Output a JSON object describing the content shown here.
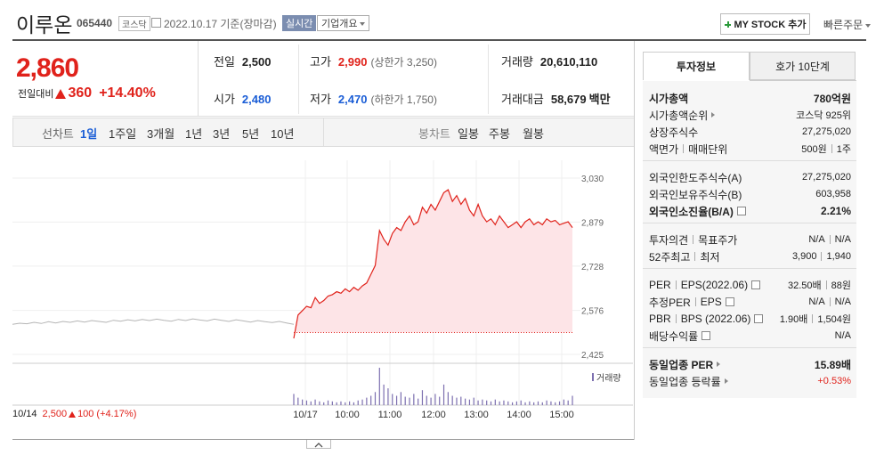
{
  "header": {
    "name": "이루온",
    "code": "065440",
    "market": "코스닥",
    "date": "2022.10.17 기준(장마감)",
    "realtime": "실시간",
    "company_info": "기업개요",
    "my_stock": "MY STOCK 추가",
    "quick_order": "빠른주문"
  },
  "price": {
    "current": "2,860",
    "change_label": "전일대비",
    "change": "360",
    "change_pct": "+14.40%"
  },
  "quote": {
    "rows": [
      [
        {
          "label": "전일",
          "value": "2,500"
        },
        {
          "label": "고가",
          "value": "2,990",
          "color": "#e0221b",
          "note": "(상한가 3,250)"
        },
        {
          "label": "거래량",
          "value": "20,610,110"
        }
      ],
      [
        {
          "label": "시가",
          "value": "2,480",
          "color": "#1a5dd6"
        },
        {
          "label": "저가",
          "value": "2,470",
          "color": "#1a5dd6",
          "note": "(하한가 1,750)"
        },
        {
          "label": "거래대금",
          "value": "58,679",
          "unit": "백만"
        }
      ]
    ]
  },
  "periods": {
    "line_label": "선차트",
    "line": [
      "1일",
      "1주일",
      "3개월",
      "1년",
      "3년",
      "5년",
      "10년"
    ],
    "line_active": 0,
    "candle_label": "봉차트",
    "candle": [
      "일봉",
      "주봉",
      "월봉"
    ]
  },
  "chart": {
    "type": "line",
    "ylim": [
      2425,
      3030
    ],
    "yticks": [
      {
        "value": 3030,
        "label": "3,030"
      },
      {
        "value": 2879,
        "label": "2,879"
      },
      {
        "value": 2728,
        "label": "2,728"
      },
      {
        "value": 2576,
        "label": "2,576"
      },
      {
        "value": 2425,
        "label": "2,425"
      }
    ],
    "xticks": [
      "10/17",
      "10:00",
      "11:00",
      "12:00",
      "13:00",
      "14:00",
      "15:00"
    ],
    "grid": true,
    "reference_line": 2500,
    "previous_day": {
      "color": "#b5b5b5",
      "values": [
        2528,
        2532,
        2530,
        2535,
        2531,
        2537,
        2533,
        2538,
        2535,
        2540,
        2536,
        2541,
        2538,
        2535,
        2542,
        2539,
        2544,
        2540,
        2545,
        2541,
        2546,
        2542,
        2539,
        2545,
        2541,
        2547,
        2543,
        2540,
        2546,
        2542,
        2538,
        2544,
        2540,
        2536,
        2541,
        2537,
        2534,
        2538,
        2533,
        2528
      ]
    },
    "today": {
      "color": "#e0221b",
      "fill": "#fde4e7",
      "values": [
        2480,
        2560,
        2575,
        2590,
        2585,
        2620,
        2600,
        2610,
        2625,
        2630,
        2640,
        2635,
        2650,
        2640,
        2655,
        2645,
        2660,
        2670,
        2700,
        2730,
        2850,
        2820,
        2800,
        2840,
        2860,
        2850,
        2880,
        2900,
        2870,
        2880,
        2930,
        2910,
        2940,
        2920,
        2950,
        2980,
        2990,
        2950,
        2970,
        2940,
        2960,
        2920,
        2900,
        2940,
        2900,
        2880,
        2890,
        2870,
        2900,
        2880,
        2860,
        2870,
        2880,
        2860,
        2880,
        2890,
        2870,
        2880,
        2870,
        2890,
        2880,
        2885,
        2870,
        2875,
        2880,
        2860
      ]
    },
    "volume": {
      "name": "거래량",
      "color": "#7d70b0",
      "values": [
        12,
        8,
        6,
        5,
        4,
        6,
        4,
        3,
        5,
        4,
        3,
        4,
        3,
        4,
        3,
        5,
        6,
        8,
        10,
        14,
        40,
        22,
        18,
        12,
        10,
        14,
        9,
        8,
        12,
        7,
        16,
        10,
        8,
        12,
        9,
        22,
        14,
        10,
        8,
        9,
        7,
        6,
        8,
        5,
        6,
        5,
        4,
        6,
        4,
        5,
        4,
        3,
        4,
        5,
        3,
        4,
        3,
        4,
        3,
        5,
        4,
        3,
        4,
        6,
        5,
        10
      ]
    },
    "summary": {
      "date": "10/14",
      "close": "2,500",
      "change": "100",
      "change_pct": "(+4.17%)"
    }
  },
  "side": {
    "tabs": [
      "투자정보",
      "호가 10단계"
    ],
    "groups": [
      [
        {
          "labels": [
            "시가총액"
          ],
          "values": [
            "780억원"
          ],
          "bold": true
        },
        {
          "labels": [
            "시가총액순위"
          ],
          "values": [
            "코스닥 925위"
          ],
          "link": true
        },
        {
          "labels": [
            "상장주식수"
          ],
          "values": [
            "27,275,020"
          ]
        },
        {
          "labels": [
            "액면가",
            "매매단위"
          ],
          "values": [
            "500원",
            "1주"
          ]
        }
      ],
      [
        {
          "labels": [
            "외국인한도주식수(A)"
          ],
          "values": [
            "27,275,020"
          ]
        },
        {
          "labels": [
            "외국인보유주식수(B)"
          ],
          "values": [
            "603,958"
          ]
        },
        {
          "labels": [
            "외국인소진율(B/A)"
          ],
          "values": [
            "2.21%"
          ],
          "bold": true,
          "help": true
        }
      ],
      [
        {
          "labels": [
            "투자의견",
            "목표주가"
          ],
          "values": [
            "N/A",
            "N/A"
          ]
        },
        {
          "labels": [
            "52주최고",
            "최저"
          ],
          "values": [
            "3,900",
            "1,940"
          ]
        }
      ],
      [
        {
          "labels": [
            "PER",
            "EPS(2022.06)"
          ],
          "values": [
            "32.50배",
            "88원"
          ],
          "help": true
        },
        {
          "labels": [
            "추정PER",
            "EPS"
          ],
          "values": [
            "N/A",
            "N/A"
          ],
          "help": true
        },
        {
          "labels": [
            "PBR",
            "BPS (2022.06)"
          ],
          "values": [
            "1.90배",
            "1,504원"
          ],
          "help": true
        },
        {
          "labels": [
            "배당수익률"
          ],
          "values": [
            "N/A"
          ],
          "help": true
        }
      ],
      [
        {
          "labels": [
            "동일업종 PER"
          ],
          "values": [
            "15.89배"
          ],
          "bold": true,
          "link": true
        },
        {
          "labels": [
            "동일업종 등락률"
          ],
          "values": [
            "+0.53%"
          ],
          "link": true,
          "color": "#e0221b"
        }
      ]
    ]
  }
}
